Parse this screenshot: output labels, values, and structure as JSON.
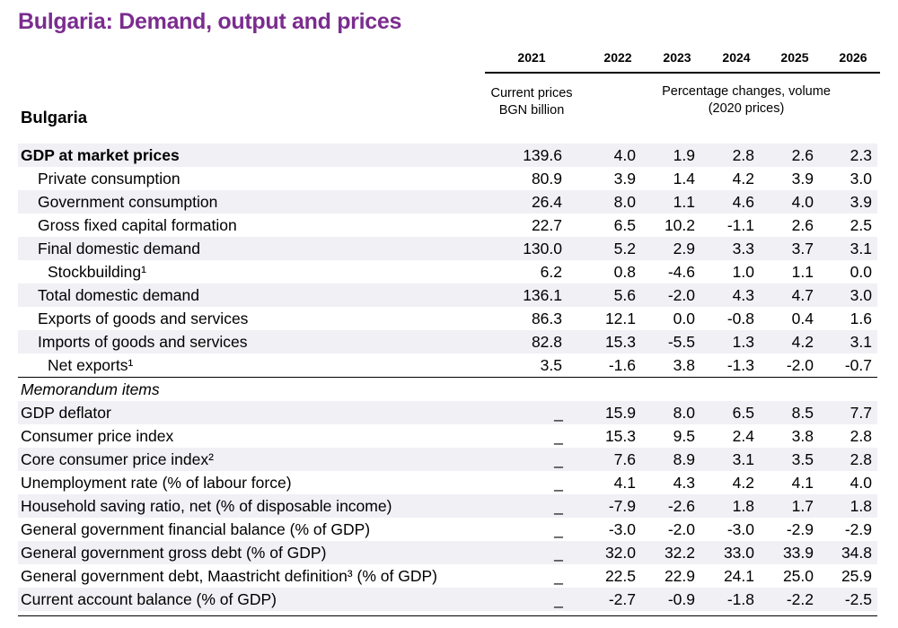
{
  "title": "Bulgaria: Demand, output and prices",
  "country": "Bulgaria",
  "years": [
    "2021",
    "2022",
    "2023",
    "2024",
    "2025",
    "2026"
  ],
  "units": {
    "left_line1": "Current prices",
    "left_line2": "BGN billion",
    "right_line1": "Percentage changes, volume",
    "right_line2": "(2020 prices)"
  },
  "rows": [
    {
      "label": "GDP at market prices",
      "values": [
        "139.6",
        "4.0",
        "1.9",
        "2.8",
        "2.6",
        "2.3"
      ]
    },
    {
      "label": "Private consumption",
      "values": [
        "80.9",
        "3.9",
        "1.4",
        "4.2",
        "3.9",
        "3.0"
      ]
    },
    {
      "label": "Government consumption",
      "values": [
        "26.4",
        "8.0",
        "1.1",
        "4.6",
        "4.0",
        "3.9"
      ]
    },
    {
      "label": "Gross fixed capital formation",
      "values": [
        "22.7",
        "6.5",
        "10.2",
        "-1.1",
        "2.6",
        "2.5"
      ]
    },
    {
      "label": "Final domestic demand",
      "values": [
        "130.0",
        "5.2",
        "2.9",
        "3.3",
        "3.7",
        "3.1"
      ]
    },
    {
      "label": "Stockbuilding¹",
      "values": [
        "6.2",
        "0.8",
        "-4.6",
        "1.0",
        "1.1",
        "0.0"
      ]
    },
    {
      "label": "Total domestic demand",
      "values": [
        "136.1",
        "5.6",
        "-2.0",
        "4.3",
        "4.7",
        "3.0"
      ]
    },
    {
      "label": "Exports of goods and services",
      "values": [
        "86.3",
        "12.1",
        "0.0",
        "-0.8",
        "0.4",
        "1.6"
      ]
    },
    {
      "label": "Imports of goods and services",
      "values": [
        "82.8",
        "15.3",
        "-5.5",
        "1.3",
        "4.2",
        "3.1"
      ]
    },
    {
      "label": "Net exports¹",
      "values": [
        "3.5",
        "-1.6",
        "3.8",
        "-1.3",
        "-2.0",
        "-0.7"
      ]
    }
  ],
  "memo_title": "Memorandum items",
  "memo_rows": [
    {
      "label": "GDP deflator",
      "dash": "_",
      "values": [
        "15.9",
        "8.0",
        "6.5",
        "8.5",
        "7.7"
      ]
    },
    {
      "label": "Consumer price index",
      "dash": "_",
      "values": [
        "15.3",
        "9.5",
        "2.4",
        "3.8",
        "2.8"
      ]
    },
    {
      "label": "Core consumer price index²",
      "dash": "_",
      "values": [
        "7.6",
        "8.9",
        "3.1",
        "3.5",
        "2.8"
      ]
    },
    {
      "label": "Unemployment rate (% of labour force)",
      "dash": "_",
      "values": [
        "4.1",
        "4.3",
        "4.2",
        "4.1",
        "4.0"
      ]
    },
    {
      "label": "Household saving ratio, net (% of disposable income)",
      "dash": "_",
      "values": [
        "-7.9",
        "-2.6",
        "1.8",
        "1.7",
        "1.8"
      ]
    },
    {
      "label": "General government financial balance (% of GDP)",
      "dash": "_",
      "values": [
        "-3.0",
        "-2.0",
        "-3.0",
        "-2.9",
        "-2.9"
      ]
    },
    {
      "label": "General government gross debt (% of GDP)",
      "dash": "_",
      "values": [
        "32.0",
        "32.2",
        "33.0",
        "33.9",
        "34.8"
      ]
    },
    {
      "label": "General government debt, Maastricht definition³ (% of GDP)",
      "dash": "_",
      "values": [
        "22.5",
        "22.9",
        "24.1",
        "25.0",
        "25.9"
      ]
    },
    {
      "label": "Current account balance (% of GDP)",
      "dash": "_",
      "values": [
        "-2.7",
        "-0.9",
        "-1.8",
        "-2.2",
        "-2.5"
      ]
    }
  ]
}
